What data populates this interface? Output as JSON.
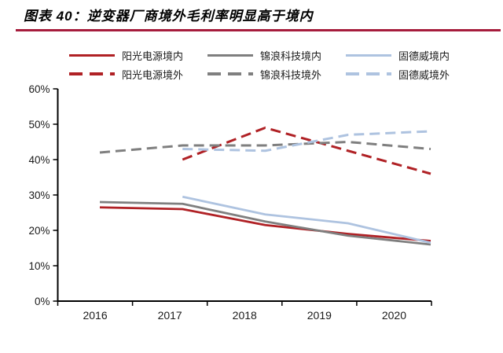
{
  "page": {
    "title": "图表 40：逆变器厂商境外毛利率明显高于境内",
    "accent_color": "#a61c3c",
    "background_color": "#ffffff"
  },
  "chart_data": {
    "type": "line",
    "title": "逆变器厂商境外毛利率明显高于境内",
    "categories": [
      "2016",
      "2017",
      "2018",
      "2019",
      "2020"
    ],
    "xlabel": "",
    "ylabel": "",
    "unit": "%",
    "y_axis": {
      "min": 0,
      "max": 60,
      "step": 10,
      "tick_suffix": "%"
    },
    "grid": false,
    "legend_position": "top",
    "series": [
      {
        "name": "阳光电源境内",
        "color": "#b02125",
        "style": "solid",
        "values": [
          26.5,
          26,
          21.5,
          19,
          17
        ]
      },
      {
        "name": "锦浪科技境内",
        "color": "#7f7f7f",
        "style": "solid",
        "values": [
          28,
          27.5,
          22.5,
          18.5,
          16
        ]
      },
      {
        "name": "固德威境内",
        "color": "#aec3e0",
        "style": "solid",
        "values": [
          null,
          29.5,
          24.5,
          22,
          16.5
        ]
      },
      {
        "name": "阳光电源境外",
        "color": "#b02125",
        "style": "dashed",
        "values": [
          null,
          40,
          49,
          42.5,
          36
        ]
      },
      {
        "name": "锦浪科技境外",
        "color": "#7f7f7f",
        "style": "dashed",
        "values": [
          42,
          44,
          44,
          45,
          43
        ]
      },
      {
        "name": "固德威境外",
        "color": "#aec3e0",
        "style": "dashed",
        "values": [
          null,
          43,
          42.5,
          47,
          48
        ]
      }
    ]
  }
}
